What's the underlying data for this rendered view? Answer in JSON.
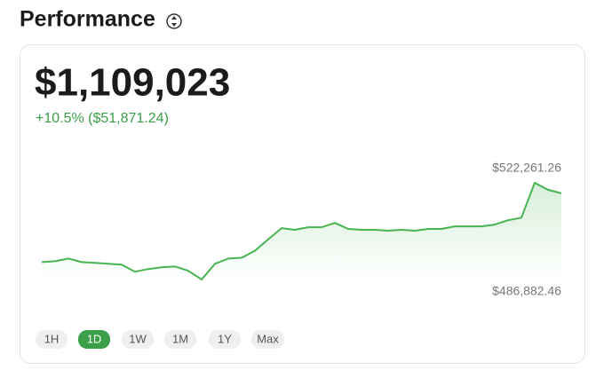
{
  "header": {
    "title": "Performance"
  },
  "balance": "$1,109,023",
  "change": "+10.5% ($51,871.24)",
  "chart_data": {
    "type": "line",
    "color": "#46b450",
    "values": [
      493257,
      493576,
      494532,
      493257,
      492938,
      492620,
      492301,
      489751,
      490707,
      491345,
      491663,
      490070,
      486882.46,
      492620,
      494532,
      494850,
      497400,
      501544,
      505687,
      505049,
      506006,
      506006,
      507599,
      505368,
      505049,
      505049,
      504731,
      505049,
      504731,
      505368,
      505368,
      506324,
      506324,
      506324,
      506962,
      508556,
      509512,
      522261.26,
      519712,
      518437
    ],
    "high": {
      "value": 522261.26,
      "label": "$522,261.26"
    },
    "low": {
      "value": 486882.46,
      "label": "$486,882.46"
    }
  },
  "ranges": [
    "1H",
    "1D",
    "1W",
    "1M",
    "1Y",
    "Max"
  ],
  "selected_range": 1
}
